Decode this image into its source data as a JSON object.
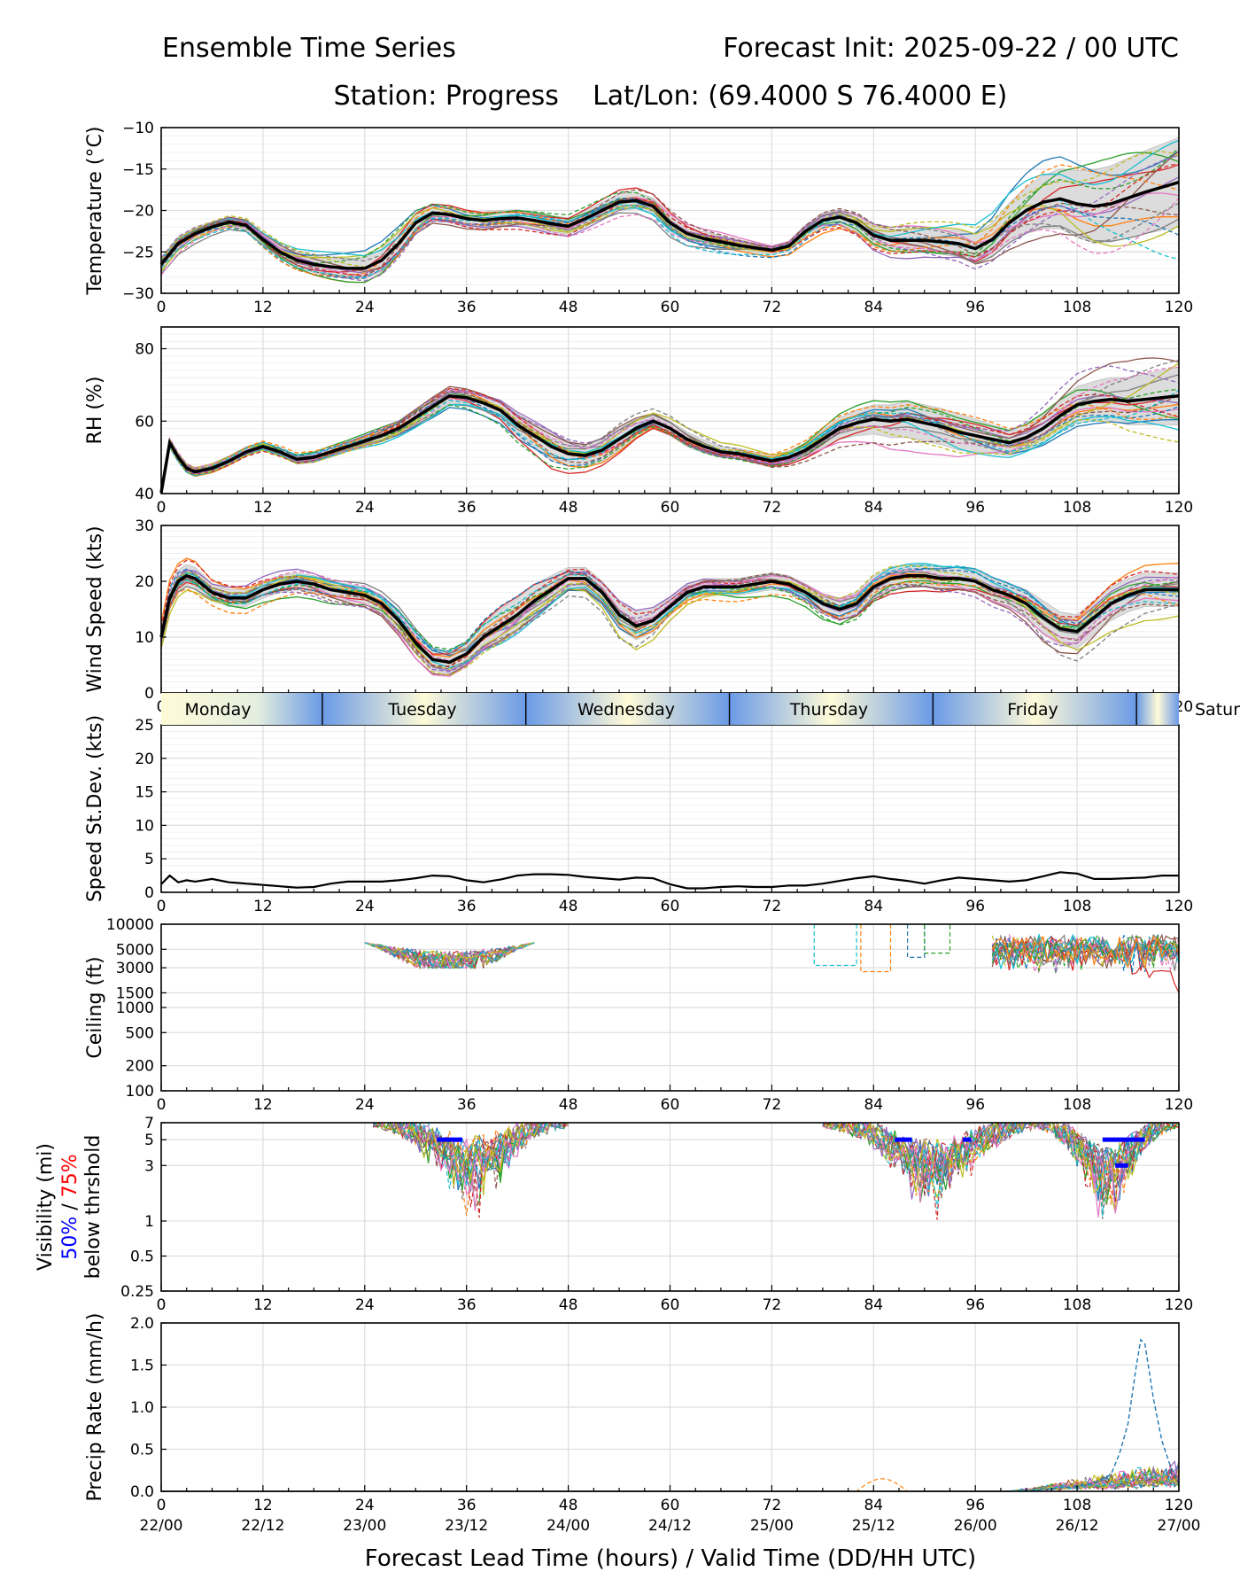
{
  "header": {
    "left_title": "Ensemble Time Series",
    "right_title": "Forecast Init: 2025-09-22 / 00 UTC",
    "subtitle": "Station: Progress    Lat/Lon: (69.4000 S 76.4000 E)"
  },
  "xaxis": {
    "label": "Forecast Lead Time (hours) / Valid Time (DD/HH UTC)",
    "lead_ticks": [
      "0",
      "12",
      "24",
      "36",
      "48",
      "60",
      "72",
      "84",
      "96",
      "108",
      "120"
    ],
    "valid_ticks": [
      "22/00",
      "22/12",
      "23/00",
      "23/12",
      "24/00",
      "24/12",
      "25/00",
      "25/12",
      "26/00",
      "26/12",
      "27/00"
    ],
    "range": [
      0,
      120
    ]
  },
  "days": [
    "Monday",
    "Tuesday",
    "Wednesday",
    "Thursday",
    "Friday",
    "Satur"
  ],
  "colors": {
    "mean": "#000000",
    "spread": "#d9d9d9",
    "threshold_50": "#0000ff",
    "threshold_75": "#ff0000",
    "members": [
      "#1f77b4",
      "#ff7f0e",
      "#2ca02c",
      "#d62728",
      "#9467bd",
      "#8c564b",
      "#e377c2",
      "#7f7f7f",
      "#bcbd22",
      "#17becf"
    ]
  },
  "chart_data": [
    {
      "type": "line",
      "id": "temperature",
      "ylabel": "Temperature (°C)",
      "ylim": [
        -30,
        -10
      ],
      "yticks": [
        "−30",
        "−25",
        "−20",
        "−15",
        "−10"
      ],
      "x": [
        0,
        2,
        4,
        6,
        8,
        10,
        12,
        14,
        16,
        18,
        20,
        22,
        24,
        26,
        28,
        30,
        32,
        34,
        36,
        38,
        40,
        42,
        44,
        46,
        48,
        50,
        52,
        54,
        56,
        58,
        60,
        62,
        64,
        66,
        68,
        70,
        72,
        74,
        76,
        78,
        80,
        82,
        84,
        86,
        88,
        90,
        92,
        94,
        96,
        98,
        100,
        102,
        104,
        106,
        108,
        110,
        112,
        114,
        116,
        118,
        120
      ],
      "mean": [
        -26.5,
        -24,
        -22.8,
        -22,
        -21.4,
        -21.8,
        -23.5,
        -25,
        -26,
        -26.5,
        -26.8,
        -27,
        -27,
        -26,
        -24,
        -21.5,
        -20.3,
        -20.5,
        -21,
        -21.2,
        -21,
        -20.9,
        -21.2,
        -21.6,
        -21.9,
        -21,
        -20,
        -19,
        -18.8,
        -19.5,
        -21.5,
        -22.8,
        -23.4,
        -23.8,
        -24.2,
        -24.5,
        -24.8,
        -24.3,
        -22.5,
        -21.2,
        -20.8,
        -21.5,
        -23,
        -23.6,
        -23.6,
        -23.6,
        -23.8,
        -24,
        -24.6,
        -23.5,
        -21.5,
        -20,
        -19,
        -18.6,
        -19.2,
        -19.5,
        -19.2,
        -18.5,
        -17.8,
        -17.2,
        -16.6
      ],
      "spread_width": [
        0.8,
        0.8,
        0.7,
        0.6,
        0.6,
        0.6,
        0.7,
        0.8,
        0.9,
        1.0,
        1.1,
        1.2,
        1.3,
        1.4,
        1.4,
        1.2,
        1.0,
        1.0,
        1.0,
        1.0,
        1.0,
        1.0,
        1.0,
        1.0,
        1.0,
        1.0,
        1.0,
        1.0,
        1.0,
        1.0,
        1.0,
        0.9,
        0.8,
        0.8,
        0.7,
        0.6,
        0.5,
        0.6,
        0.8,
        0.9,
        0.9,
        1.0,
        1.2,
        1.3,
        1.4,
        1.4,
        1.5,
        1.6,
        1.8,
        2.0,
        2.4,
        2.8,
        3.2,
        3.6,
        4.0,
        4.4,
        4.6,
        4.8,
        5.0,
        5.2,
        5.4
      ],
      "member_amplitude": 1.8
    },
    {
      "type": "line",
      "id": "rh",
      "ylabel": "RH (%)",
      "ylim": [
        40,
        86
      ],
      "yticks": [
        "40",
        "60",
        "80"
      ],
      "x": [
        0,
        1,
        2,
        3,
        4,
        6,
        8,
        10,
        12,
        14,
        16,
        18,
        20,
        22,
        24,
        26,
        28,
        30,
        32,
        34,
        36,
        38,
        40,
        42,
        44,
        46,
        48,
        50,
        52,
        54,
        56,
        58,
        60,
        62,
        64,
        66,
        68,
        70,
        72,
        74,
        76,
        78,
        80,
        82,
        84,
        86,
        88,
        90,
        92,
        94,
        96,
        98,
        100,
        102,
        104,
        106,
        108,
        110,
        112,
        114,
        116,
        118,
        120
      ],
      "mean": [
        40,
        54,
        50,
        47,
        46,
        47,
        49,
        51.5,
        53,
        51.5,
        49.5,
        50,
        51.5,
        53,
        54.5,
        56,
        58,
        61,
        64,
        67,
        66.5,
        65,
        63,
        59,
        56,
        53,
        51,
        50.5,
        52,
        55,
        58,
        60,
        58,
        55,
        53,
        51.5,
        51,
        50,
        49,
        50,
        52,
        55,
        58,
        59.5,
        60.5,
        60,
        60.5,
        59.5,
        58.5,
        57,
        56,
        55,
        54,
        55.5,
        58,
        61.5,
        64.5,
        65.5,
        66,
        65.5,
        66,
        66.5,
        67
      ],
      "spread_width": [
        0.5,
        1,
        1,
        1,
        1,
        1,
        1,
        1,
        1,
        1,
        1,
        1,
        1,
        1,
        1.2,
        1.5,
        1.5,
        1.8,
        2,
        2,
        2,
        2.2,
        2.5,
        3,
        3.5,
        4,
        3.5,
        3,
        3,
        3,
        2.5,
        2,
        2,
        2,
        1.8,
        1.5,
        1.5,
        1.5,
        1.5,
        1.8,
        2,
        2.5,
        3,
        3.5,
        4,
        4.5,
        5,
        5,
        5,
        5,
        4.5,
        4,
        3.5,
        3.5,
        4,
        4.5,
        5,
        5.5,
        6,
        6.5,
        7,
        7.5,
        8
      ],
      "member_amplitude": 3.5
    },
    {
      "type": "line",
      "id": "wind",
      "ylabel": "Wind Speed (kts)",
      "ylim": [
        0,
        30
      ],
      "yticks": [
        "0",
        "10",
        "20",
        "30"
      ],
      "x": [
        0,
        1,
        2,
        3,
        4,
        6,
        8,
        10,
        12,
        14,
        16,
        18,
        20,
        22,
        24,
        26,
        28,
        30,
        32,
        34,
        36,
        38,
        40,
        42,
        44,
        46,
        48,
        50,
        52,
        54,
        56,
        58,
        60,
        62,
        64,
        66,
        68,
        70,
        72,
        74,
        76,
        78,
        80,
        82,
        84,
        86,
        88,
        90,
        92,
        94,
        96,
        98,
        100,
        102,
        104,
        106,
        108,
        110,
        112,
        114,
        116,
        118,
        120
      ],
      "mean": [
        10,
        17,
        20,
        21,
        20.5,
        18,
        17,
        17,
        18.5,
        19.5,
        20,
        19.5,
        18.5,
        18,
        17.5,
        16,
        13,
        9,
        6,
        5.5,
        7,
        10,
        12,
        14,
        16.5,
        18.5,
        20.5,
        20.5,
        18,
        14,
        12,
        13,
        15.5,
        18,
        19,
        19,
        19,
        19.5,
        20,
        19.5,
        18,
        16,
        15,
        16,
        19,
        20.5,
        21,
        21,
        20.5,
        20.5,
        20,
        18.5,
        17.5,
        16,
        13.5,
        11.5,
        11,
        13.5,
        16,
        17.5,
        18.5,
        18.5,
        18.5
      ],
      "spread_width": [
        1.5,
        2,
        2,
        2,
        2,
        1.5,
        1.5,
        1.5,
        1.5,
        1.5,
        1.5,
        1.5,
        1.5,
        1.5,
        1.5,
        1.5,
        1.8,
        2,
        2,
        2,
        2,
        2.5,
        3,
        3,
        3,
        2.5,
        2,
        2,
        2,
        2.5,
        2.5,
        2,
        1.5,
        1.5,
        1.5,
        1.5,
        1.5,
        1.5,
        1.5,
        1.5,
        1.5,
        1.8,
        2,
        2,
        2,
        2,
        2,
        2,
        2,
        2,
        2,
        2,
        2,
        2.5,
        3,
        3,
        3,
        3,
        3,
        3,
        3,
        3,
        3
      ],
      "member_amplitude": 3
    },
    {
      "type": "line",
      "id": "speed_stdev",
      "ylabel": "Speed St.Dev. (kts)",
      "ylim": [
        0,
        25
      ],
      "yticks": [
        "0",
        "5",
        "10",
        "15",
        "20",
        "25"
      ],
      "x": [
        0,
        1,
        2,
        3,
        4,
        6,
        8,
        10,
        12,
        14,
        16,
        18,
        20,
        22,
        24,
        26,
        28,
        30,
        32,
        34,
        36,
        38,
        40,
        42,
        44,
        46,
        48,
        50,
        52,
        54,
        56,
        58,
        60,
        62,
        64,
        66,
        68,
        70,
        72,
        74,
        76,
        78,
        80,
        82,
        84,
        86,
        88,
        90,
        92,
        94,
        96,
        98,
        100,
        102,
        104,
        106,
        108,
        110,
        112,
        114,
        116,
        118,
        120
      ],
      "mean": [
        1.2,
        2.5,
        1.5,
        1.8,
        1.6,
        2,
        1.5,
        1.3,
        1.1,
        0.9,
        0.7,
        0.8,
        1.3,
        1.6,
        1.6,
        1.6,
        1.8,
        2.1,
        2.5,
        2.4,
        1.8,
        1.5,
        1.9,
        2.5,
        2.7,
        2.7,
        2.6,
        2.3,
        2.1,
        1.9,
        2.2,
        2.1,
        1.2,
        0.6,
        0.6,
        0.8,
        0.9,
        0.8,
        0.8,
        1.0,
        1.0,
        1.3,
        1.7,
        2.1,
        2.4,
        2.0,
        1.7,
        1.3,
        1.8,
        2.2,
        2.0,
        1.8,
        1.6,
        1.8,
        2.4,
        3.0,
        2.8,
        2.0,
        2.0,
        2.1,
        2.2,
        2.5,
        2.5
      ]
    },
    {
      "type": "line",
      "id": "ceiling",
      "scale": "log",
      "ylabel": "Ceiling (ft)",
      "ylim": [
        100,
        10000
      ],
      "yticks": [
        "100",
        "200",
        "500",
        "1000",
        "1500",
        "3000",
        "5000",
        "10000"
      ]
    },
    {
      "type": "line",
      "id": "visibility",
      "scale": "log",
      "ylabel_line1": "Visibility (mi)",
      "ylabel_50": "50%",
      "ylabel_sep": " / ",
      "ylabel_75": "75%",
      "ylabel_line3": "below thrshold",
      "ylim": [
        0.25,
        7
      ],
      "yticks": [
        "0.25",
        "0.5",
        "1",
        "3",
        "5",
        "7"
      ],
      "threshold_bars": [
        {
          "x0": 32.5,
          "x1": 35.5,
          "y": 5
        },
        {
          "x0": 86.5,
          "x1": 88.5,
          "y": 5
        },
        {
          "x0": 94.5,
          "x1": 95.5,
          "y": 5
        },
        {
          "x0": 111,
          "x1": 116,
          "y": 5
        },
        {
          "x0": 112.5,
          "x1": 114,
          "y": 3
        }
      ]
    },
    {
      "type": "line",
      "id": "precip",
      "ylabel": "Precip Rate (mm/h)",
      "ylim": [
        0,
        2.0
      ],
      "yticks": [
        "0.0",
        "0.5",
        "1.0",
        "1.5",
        "2.0"
      ],
      "spike": {
        "x": [
          100,
          104,
          108,
          110,
          112,
          113,
          114,
          115,
          115.5,
          116,
          117,
          118,
          119,
          120
        ],
        "y": [
          0,
          0.02,
          0.06,
          0.1,
          0.2,
          0.45,
          0.8,
          1.5,
          1.8,
          1.75,
          1.1,
          0.6,
          0.3,
          0.1
        ]
      }
    }
  ]
}
